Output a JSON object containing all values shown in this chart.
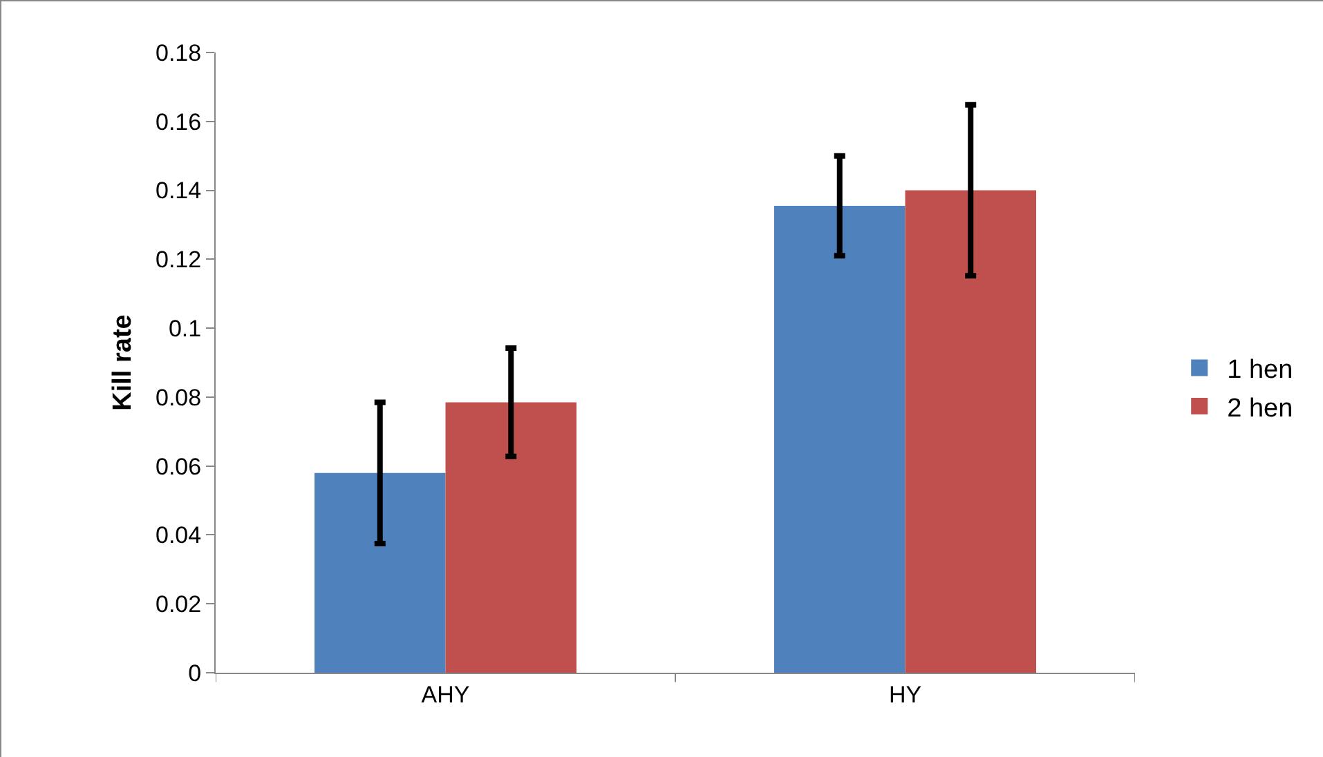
{
  "chart_data": {
    "type": "bar",
    "ylabel": "Kill rate",
    "categories": [
      "AHY",
      "HY"
    ],
    "series": [
      {
        "name": "1 hen",
        "color": "#4f81bd",
        "values": [
          0.058,
          0.1355
        ],
        "errors": [
          0.0205,
          0.0145
        ]
      },
      {
        "name": "2 hen",
        "color": "#c0504d",
        "values": [
          0.0785,
          0.14
        ],
        "errors": [
          0.0157,
          0.0248
        ]
      }
    ],
    "ylim": [
      0,
      0.18
    ],
    "yticks": [
      0,
      0.02,
      0.04,
      0.06,
      0.08,
      0.1,
      0.12,
      0.14,
      0.16,
      0.18
    ],
    "grid": false,
    "legend": "right"
  }
}
